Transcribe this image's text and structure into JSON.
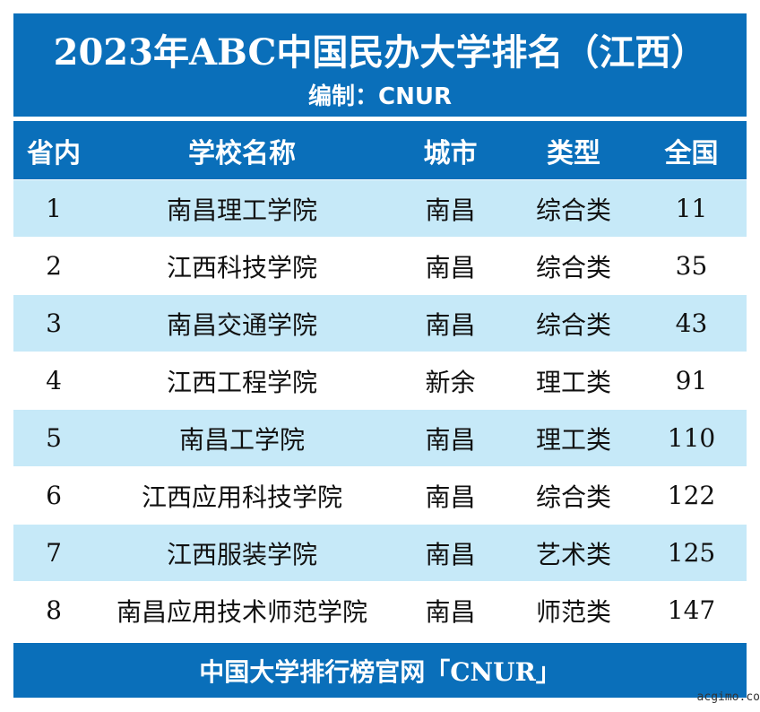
{
  "header": {
    "title": "2023年ABC中国民办大学排名（江西）",
    "subtitle": "编制：CNUR"
  },
  "table": {
    "columns": [
      "省内",
      "学校名称",
      "城市",
      "类型",
      "全国"
    ],
    "rows": [
      [
        1,
        "南昌理工学院",
        "南昌",
        "综合类",
        11
      ],
      [
        2,
        "江西科技学院",
        "南昌",
        "综合类",
        35
      ],
      [
        3,
        "南昌交通学院",
        "南昌",
        "综合类",
        43
      ],
      [
        4,
        "江西工程学院",
        "新余",
        "理工类",
        91
      ],
      [
        5,
        "南昌工学院",
        "南昌",
        "理工类",
        110
      ],
      [
        6,
        "江西应用科技学院",
        "南昌",
        "综合类",
        122
      ],
      [
        7,
        "江西服装学院",
        "南昌",
        "艺术类",
        125
      ],
      [
        8,
        "南昌应用技术师范学院",
        "南昌",
        "师范类",
        147
      ]
    ]
  },
  "footer": {
    "text": "中国大学排行榜官网「CNUR」",
    "watermark": "acgimo.co"
  }
}
